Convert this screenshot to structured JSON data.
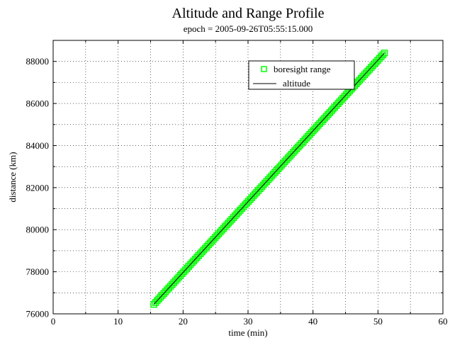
{
  "chart_data": {
    "type": "scatter",
    "title": "Altitude and Range Profile",
    "subtitle": "epoch = 2005-09-26T05:55:15.000",
    "xlabel": "time (min)",
    "ylabel": "distance (km)",
    "xlim": [
      0,
      60
    ],
    "ylim": [
      76000,
      89000
    ],
    "x_ticks": [
      0,
      10,
      20,
      30,
      40,
      50,
      60
    ],
    "y_ticks": [
      76000,
      78000,
      80000,
      82000,
      84000,
      86000,
      88000
    ],
    "x_minor_step": 5,
    "y_minor_step": 1000,
    "grid": true,
    "legend_position": "top-right",
    "series": [
      {
        "name": "boresight range",
        "kind": "markers",
        "marker": "square-outline",
        "color": "#00ff00",
        "x_start": 15.5,
        "x_end": 51.0,
        "y_start": 76450,
        "y_end": 88400,
        "point_count": 140
      },
      {
        "name": "altitude",
        "kind": "line",
        "color": "#000000",
        "x": [
          15.5,
          51.0
        ],
        "y": [
          76450,
          88400
        ]
      }
    ]
  }
}
